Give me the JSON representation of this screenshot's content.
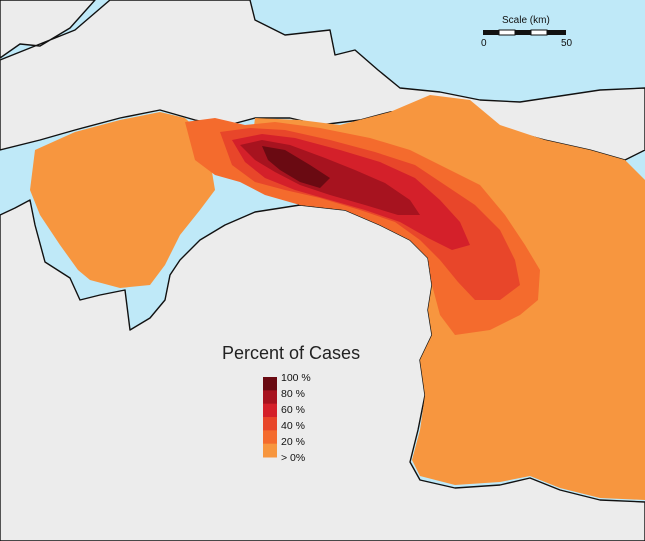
{
  "map": {
    "colors": {
      "water": "#bfe9f8",
      "land": "#ececec",
      "coast": "#111111",
      "class_gt0": "#f7963f",
      "class_20": "#f46b2d",
      "class_40": "#e8462a",
      "class_60": "#d4202a",
      "class_80": "#a7131f",
      "class_100": "#6a0a12"
    }
  },
  "legend": {
    "title": "Percent of Cases",
    "labels": [
      "100 %",
      "80 %",
      "60 %",
      "40 %",
      "20 %",
      "> 0%"
    ],
    "colors": [
      "#6a0a12",
      "#a7131f",
      "#d4202a",
      "#e8462a",
      "#f46b2d",
      "#f7963f"
    ]
  },
  "scale": {
    "title": "Scale (km)",
    "start_label": "0",
    "end_label": "50"
  }
}
